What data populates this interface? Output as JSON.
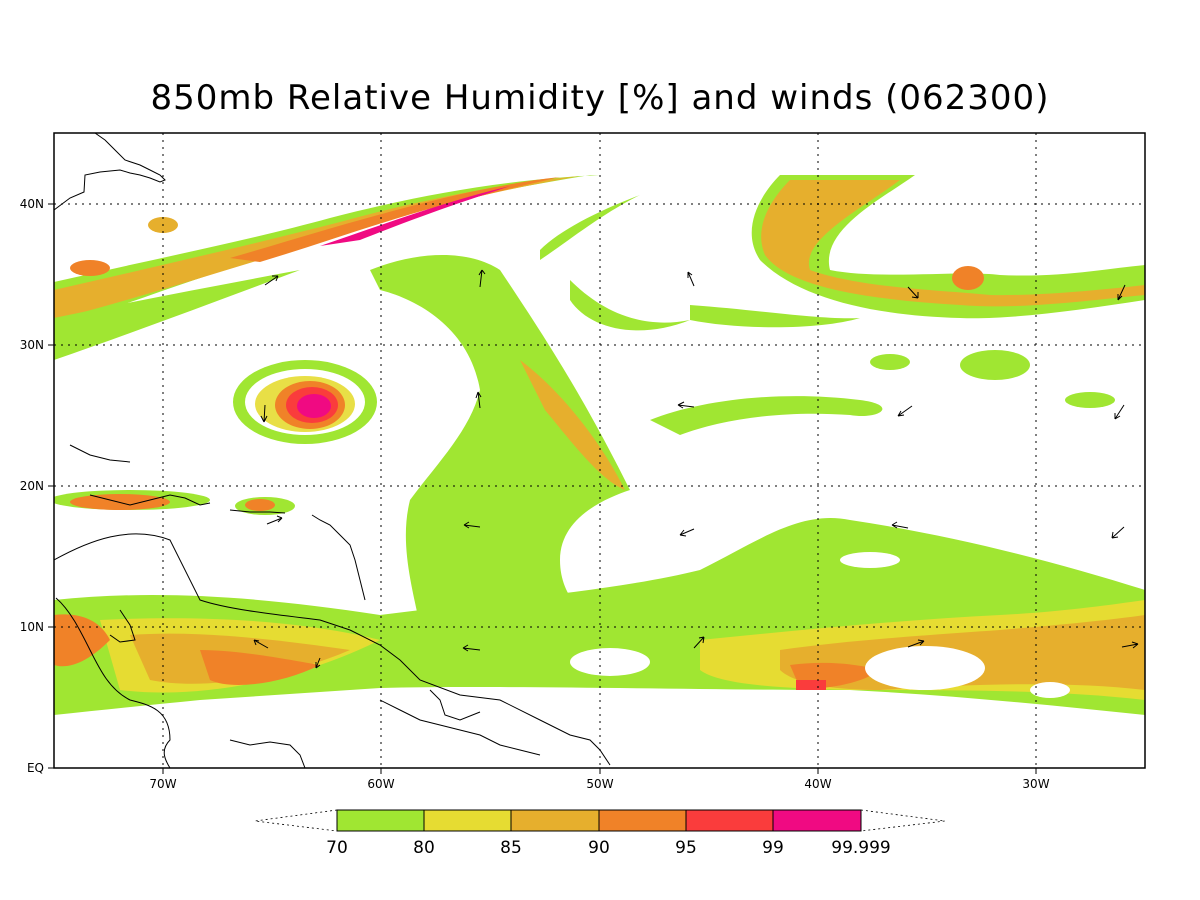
{
  "title": "850mb Relative Humidity [%] and winds (062300)",
  "axes": {
    "lon_labels": [
      "70W",
      "60W",
      "50W",
      "40W",
      "30W"
    ],
    "lat_labels": [
      "40N",
      "30N",
      "20N",
      "10N",
      "EQ"
    ]
  },
  "colorbar": {
    "levels": [
      "70",
      "80",
      "85",
      "90",
      "95",
      "99",
      "99.999"
    ],
    "colors": [
      "#a0e632",
      "#e6dc32",
      "#e6af2d",
      "#f08228",
      "#fa3c3c",
      "#f00a82"
    ]
  },
  "map": {
    "lon_range": [
      -75,
      -25
    ],
    "lat_range": [
      0,
      45
    ],
    "grid": "dotted",
    "features": [
      "relative humidity shading",
      "wind vectors",
      "coastlines"
    ]
  }
}
